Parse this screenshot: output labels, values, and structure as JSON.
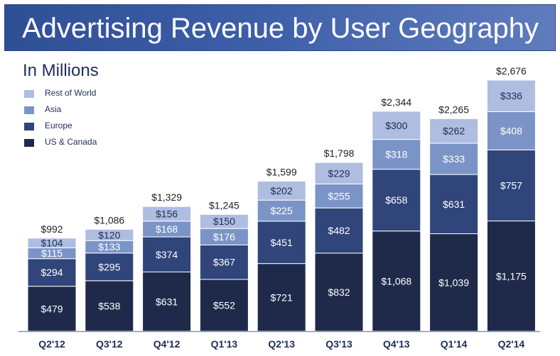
{
  "header": {
    "title": "Advertising Revenue by User Geography",
    "subtitle": "In Millions"
  },
  "colors": {
    "us_canada": "#1f2a4b",
    "europe": "#30457a",
    "asia": "#7b94c8",
    "rest_of_world": "#aebde0",
    "axis": "#8a93aa",
    "title_bar": "#3d5ea8"
  },
  "chart_data": {
    "type": "bar",
    "stacked": true,
    "title": "Advertising Revenue by User Geography",
    "subtitle": "In Millions",
    "xlabel": "",
    "ylabel": "",
    "ylim": [
      0,
      2800
    ],
    "grid": false,
    "legend_position": "top-left",
    "categories": [
      "Q2'12",
      "Q3'12",
      "Q4'12",
      "Q1'13",
      "Q2'13",
      "Q3'13",
      "Q4'13",
      "Q1'14",
      "Q2'14"
    ],
    "series": [
      {
        "name": "US & Canada",
        "color": "#1f2a4b",
        "values": [
          479,
          538,
          631,
          552,
          721,
          832,
          1068,
          1039,
          1175
        ],
        "labels": [
          "$479",
          "$538",
          "$631",
          "$552",
          "$721",
          "$832",
          "$1,068",
          "$1,039",
          "$1,175"
        ]
      },
      {
        "name": "Europe",
        "color": "#30457a",
        "values": [
          294,
          295,
          374,
          367,
          451,
          482,
          658,
          631,
          757
        ],
        "labels": [
          "$294",
          "$295",
          "$374",
          "$367",
          "$451",
          "$482",
          "$658",
          "$631",
          "$757"
        ]
      },
      {
        "name": "Asia",
        "color": "#7b94c8",
        "values": [
          115,
          133,
          168,
          176,
          225,
          255,
          318,
          333,
          408
        ],
        "labels": [
          "$115",
          "$133",
          "$168",
          "$176",
          "$225",
          "$255",
          "$318",
          "$333",
          "$408"
        ]
      },
      {
        "name": "Rest of World",
        "color": "#aebde0",
        "values": [
          104,
          120,
          156,
          150,
          202,
          229,
          300,
          262,
          336
        ],
        "labels": [
          "$104",
          "$120",
          "$156",
          "$150",
          "$202",
          "$229",
          "$300",
          "$262",
          "$336"
        ]
      }
    ],
    "totals": [
      992,
      1086,
      1329,
      1245,
      1599,
      1798,
      2344,
      2265,
      2676
    ],
    "total_labels": [
      "$992",
      "$1,086",
      "$1,329",
      "$1,245",
      "$1,599",
      "$1,798",
      "$2,344",
      "$2,265",
      "$2,676"
    ]
  },
  "legend": {
    "items": [
      {
        "label": "Rest of World",
        "color": "#aebde0"
      },
      {
        "label": "Asia",
        "color": "#7b94c8"
      },
      {
        "label": "Europe",
        "color": "#30457a"
      },
      {
        "label": "US & Canada",
        "color": "#1f2a4b"
      }
    ]
  }
}
